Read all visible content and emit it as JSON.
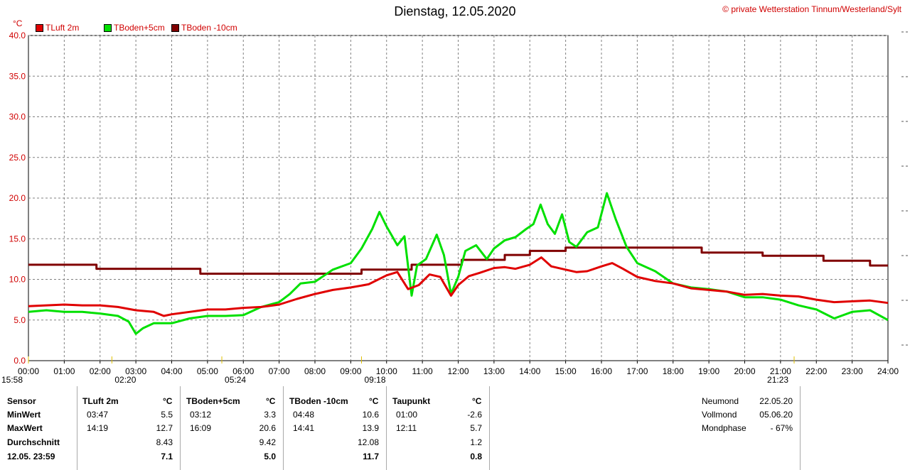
{
  "title": "Dienstag, 12.05.2020",
  "copyright_symbol": "©",
  "copyright": "private Wetterstation Tinnum/Westerland/Sylt",
  "unit": "°C",
  "colors": {
    "tluft": "#e00000",
    "tboden5": "#00e000",
    "tboden10": "#800000",
    "grid": "#808080",
    "text_red": "#d00000"
  },
  "chart_data": {
    "type": "line",
    "title": "Dienstag, 12.05.2020",
    "xlabel": "",
    "ylabel": "°C",
    "ylim": [
      0,
      40
    ],
    "xlim": [
      0,
      24
    ],
    "grid": true,
    "legend_position": "top-left",
    "y_ticks": [
      "0.0",
      "5.0",
      "10.0",
      "15.0",
      "20.0",
      "25.0",
      "30.0",
      "35.0",
      "40.0"
    ],
    "x_ticks": [
      "00:00",
      "01:00",
      "02:00",
      "03:00",
      "04:00",
      "05:00",
      "06:00",
      "07:00",
      "08:00",
      "09:00",
      "10:00",
      "11:00",
      "12:00",
      "13:00",
      "14:00",
      "15:00",
      "16:00",
      "17:00",
      "18:00",
      "19:00",
      "20:00",
      "21:00",
      "22:00",
      "23:00",
      "24:00"
    ],
    "annotations": [
      {
        "label": "15:58",
        "x": 0.0
      },
      {
        "label": "02:20",
        "x": 2.33
      },
      {
        "label": "05:24",
        "x": 5.4
      },
      {
        "label": "09:18",
        "x": 9.3
      },
      {
        "label": "21:23",
        "x": 21.38
      }
    ],
    "series": [
      {
        "name": "TLuft 2m",
        "color": "#e00000",
        "x": [
          0,
          0.5,
          1,
          1.5,
          2,
          2.5,
          3,
          3.5,
          3.78,
          4,
          4.5,
          5,
          5.5,
          6,
          6.5,
          7,
          7.5,
          8,
          8.5,
          9,
          9.5,
          10,
          10.3,
          10.6,
          10.9,
          11.2,
          11.5,
          11.8,
          12,
          12.3,
          12.6,
          13,
          13.3,
          13.6,
          14,
          14.32,
          14.6,
          15,
          15.3,
          15.6,
          16,
          16.3,
          16.6,
          17,
          17.5,
          18,
          18.5,
          19,
          19.5,
          20,
          20.5,
          21,
          21.5,
          22,
          22.5,
          23,
          23.5,
          24
        ],
        "y": [
          6.7,
          6.8,
          6.9,
          6.8,
          6.8,
          6.6,
          6.2,
          6.0,
          5.5,
          5.7,
          6.0,
          6.3,
          6.3,
          6.5,
          6.6,
          6.9,
          7.6,
          8.2,
          8.7,
          9.0,
          9.4,
          10.5,
          10.9,
          8.8,
          9.3,
          10.6,
          10.3,
          8.0,
          9.3,
          10.4,
          10.8,
          11.4,
          11.5,
          11.3,
          11.8,
          12.7,
          11.6,
          11.2,
          10.9,
          11.0,
          11.6,
          12.0,
          11.3,
          10.3,
          9.8,
          9.5,
          8.9,
          8.7,
          8.5,
          8.1,
          8.2,
          8.0,
          7.9,
          7.5,
          7.2,
          7.3,
          7.4,
          7.1
        ]
      },
      {
        "name": "TBoden+5cm",
        "color": "#00e000",
        "x": [
          0,
          0.5,
          1,
          1.5,
          2,
          2.5,
          2.8,
          3.0,
          3.2,
          3.5,
          4,
          4.5,
          5,
          5.5,
          6,
          6.5,
          7,
          7.3,
          7.6,
          8,
          8.5,
          9,
          9.3,
          9.6,
          9.8,
          10,
          10.3,
          10.5,
          10.7,
          10.85,
          11.1,
          11.4,
          11.6,
          11.8,
          12,
          12.2,
          12.5,
          12.8,
          13,
          13.3,
          13.6,
          13.9,
          14.1,
          14.3,
          14.5,
          14.7,
          14.9,
          15.1,
          15.3,
          15.6,
          15.9,
          16.15,
          16.4,
          16.7,
          17,
          17.5,
          18,
          18.5,
          19,
          19.5,
          20,
          20.5,
          21,
          21.5,
          22,
          22.5,
          23,
          23.5,
          24
        ],
        "y": [
          6.0,
          6.2,
          6.0,
          6.0,
          5.8,
          5.5,
          4.8,
          3.3,
          4.0,
          4.6,
          4.6,
          5.2,
          5.5,
          5.5,
          5.6,
          6.6,
          7.2,
          8.2,
          9.5,
          9.7,
          11.2,
          12.0,
          13.8,
          16.2,
          18.3,
          16.5,
          14.2,
          15.3,
          8.0,
          11.7,
          12.5,
          15.5,
          13.0,
          8.2,
          10.3,
          13.5,
          14.2,
          12.5,
          13.8,
          14.8,
          15.2,
          16.2,
          16.8,
          19.2,
          16.8,
          15.6,
          18.0,
          14.6,
          14.0,
          15.8,
          16.4,
          20.6,
          17.4,
          14.0,
          12.0,
          11.0,
          9.5,
          9.0,
          8.8,
          8.5,
          7.8,
          7.8,
          7.5,
          6.8,
          6.3,
          5.2,
          6.0,
          6.2,
          5.0
        ]
      },
      {
        "name": "TBoden -10cm",
        "color": "#800000",
        "x": [
          0,
          1.9,
          1.9,
          4.8,
          4.8,
          9.3,
          9.3,
          10.7,
          10.7,
          12.1,
          12.1,
          13.3,
          13.3,
          14.0,
          14.0,
          15.0,
          15.0,
          15.9,
          15.9,
          18.8,
          18.8,
          20.5,
          20.5,
          22.2,
          22.2,
          23.5,
          23.5,
          24
        ],
        "y": [
          11.8,
          11.8,
          11.3,
          11.3,
          10.7,
          10.7,
          11.2,
          11.2,
          11.8,
          11.8,
          12.4,
          12.4,
          13.0,
          13.0,
          13.5,
          13.5,
          13.9,
          13.9,
          13.9,
          13.9,
          13.3,
          13.3,
          12.9,
          12.9,
          12.3,
          12.3,
          11.7,
          11.7
        ]
      }
    ]
  },
  "stats": {
    "columns": [
      {
        "header": "Sensor",
        "rows": [
          "MinWert",
          "MaxWert",
          "Durchschnitt",
          "12.05. 23:59"
        ]
      },
      {
        "header": "TLuft 2m",
        "unit": "°C",
        "min_time": "03:47",
        "min": "5.5",
        "max_time": "14:19",
        "max": "12.7",
        "avg": "8.43",
        "current": "7.1"
      },
      {
        "header": "TBoden+5cm",
        "unit": "°C",
        "min_time": "03:12",
        "min": "3.3",
        "max_time": "16:09",
        "max": "20.6",
        "avg": "9.42",
        "current": "5.0"
      },
      {
        "header": "TBoden -10cm",
        "unit": "°C",
        "min_time": "04:48",
        "min": "10.6",
        "max_time": "14:41",
        "max": "13.9",
        "avg": "12.08",
        "current": "11.7"
      },
      {
        "header": "Taupunkt",
        "unit": "°C",
        "min_time": "01:00",
        "min": "-2.6",
        "max_time": "12:11",
        "max": "5.7",
        "avg": "1.2",
        "current": "0.8"
      }
    ],
    "moon": [
      {
        "label": "Neumond",
        "value": "22.05.20"
      },
      {
        "label": "Vollmond",
        "value": "05.06.20"
      },
      {
        "label": "Mondphase",
        "value": "- 67%"
      }
    ]
  }
}
